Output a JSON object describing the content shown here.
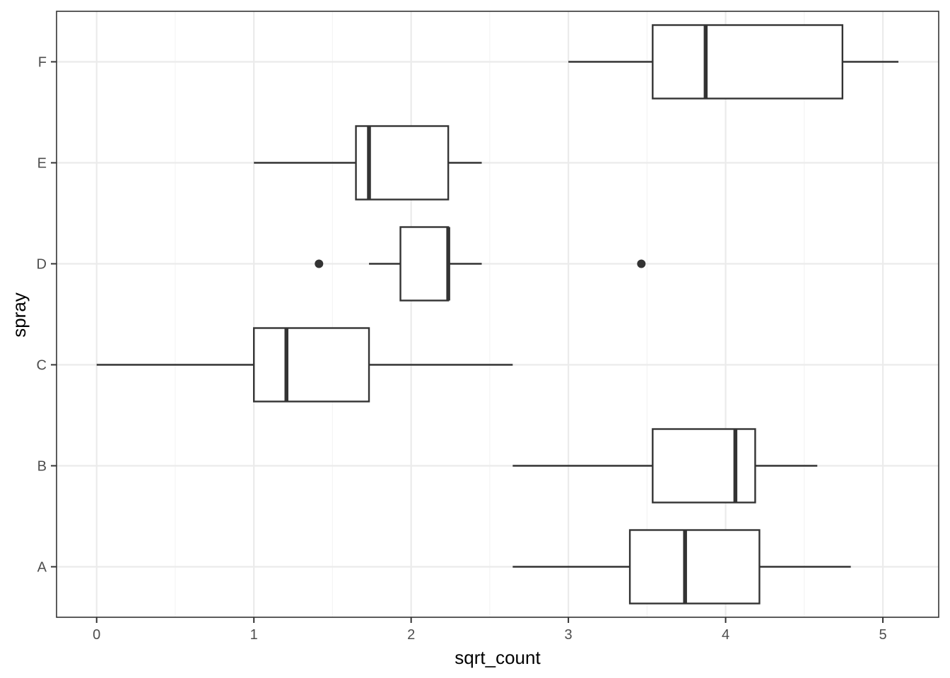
{
  "chart_data": {
    "type": "boxplot",
    "orientation": "horizontal",
    "xlabel": "sqrt_count",
    "ylabel": "spray",
    "xlim": [
      -0.255,
      5.355
    ],
    "x_ticks": [
      0,
      1,
      2,
      3,
      4,
      5
    ],
    "x_minor_ticks": [
      0.5,
      1.5,
      2.5,
      3.5,
      4.5
    ],
    "categories": [
      "A",
      "B",
      "C",
      "D",
      "E",
      "F"
    ],
    "grid": true,
    "legend": "none",
    "boxes": [
      {
        "category": "A",
        "whisker_low": 2.646,
        "q1": 3.391,
        "median": 3.742,
        "q3": 4.215,
        "whisker_high": 4.796,
        "outliers": []
      },
      {
        "category": "B",
        "whisker_low": 2.646,
        "q1": 3.536,
        "median": 4.062,
        "q3": 4.188,
        "whisker_high": 4.583,
        "outliers": []
      },
      {
        "category": "C",
        "whisker_low": 0.0,
        "q1": 1.0,
        "median": 1.207,
        "q3": 1.732,
        "whisker_high": 2.646,
        "outliers": []
      },
      {
        "category": "D",
        "whisker_low": 1.732,
        "q1": 1.932,
        "median": 2.236,
        "q3": 2.236,
        "whisker_high": 2.449,
        "outliers": [
          1.414,
          3.464
        ]
      },
      {
        "category": "E",
        "whisker_low": 1.0,
        "q1": 1.649,
        "median": 1.732,
        "q3": 2.236,
        "whisker_high": 2.449,
        "outliers": []
      },
      {
        "category": "F",
        "whisker_low": 3.0,
        "q1": 3.536,
        "median": 3.873,
        "q3": 4.743,
        "whisker_high": 5.099,
        "outliers": []
      }
    ]
  },
  "colors": {
    "panel_border": "#333333",
    "grid_major": "#ebebeb",
    "grid_minor": "#f4f4f4",
    "box_stroke": "#333333",
    "box_fill": "#ffffff",
    "tick_text": "#4d4d4d",
    "title_text": "#000000"
  }
}
